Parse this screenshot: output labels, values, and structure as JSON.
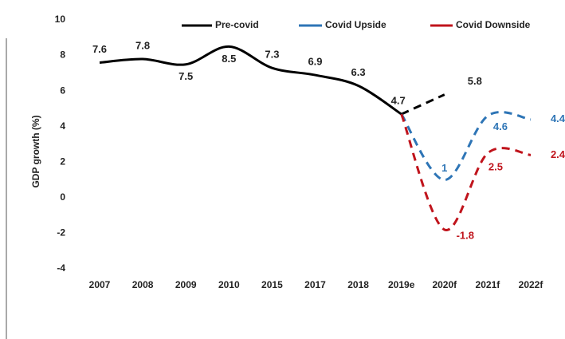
{
  "chart_data": {
    "type": "line",
    "y_label": "GDP growth (%)",
    "categories": [
      "2007",
      "2008",
      "2009",
      "2010",
      "2015",
      "2017",
      "2018",
      "2019e",
      "2020f",
      "2021f",
      "2022f"
    ],
    "series": [
      {
        "name": "Pre-covid",
        "color": "#000000",
        "values": [
          7.6,
          7.8,
          7.5,
          8.5,
          7.3,
          6.9,
          6.3,
          4.7,
          5.8,
          null,
          null
        ]
      },
      {
        "name": "Covid Upside",
        "color": "#2e75b6",
        "values": [
          null,
          null,
          null,
          null,
          null,
          null,
          null,
          4.7,
          1.0,
          4.6,
          4.4
        ]
      },
      {
        "name": "Covid Downside",
        "color": "#c0141c",
        "values": [
          null,
          null,
          null,
          null,
          null,
          null,
          null,
          4.7,
          -1.8,
          2.5,
          2.4
        ]
      }
    ],
    "ylim": [
      -4,
      10
    ],
    "yticks": [
      -4,
      -2,
      0,
      2,
      4,
      6,
      8,
      10
    ],
    "grid": false,
    "legend": "top"
  }
}
